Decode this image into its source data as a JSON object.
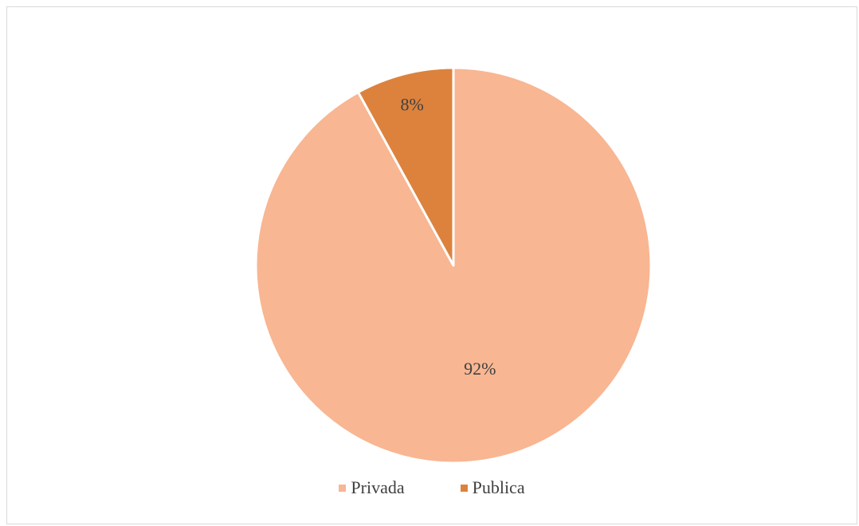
{
  "chart_data": {
    "type": "pie",
    "title": "",
    "categories": [
      "Privada",
      "Publica"
    ],
    "values": [
      92,
      8
    ],
    "value_labels": [
      "92%",
      "8%"
    ],
    "colors": [
      "#F8B692",
      "#DC823D"
    ],
    "start_angle_deg": 0,
    "direction": "clockwise",
    "legend_position": "bottom",
    "legend": [
      {
        "label": "Privada",
        "color": "#F8B692"
      },
      {
        "label": "Publica",
        "color": "#DC823D"
      }
    ]
  }
}
